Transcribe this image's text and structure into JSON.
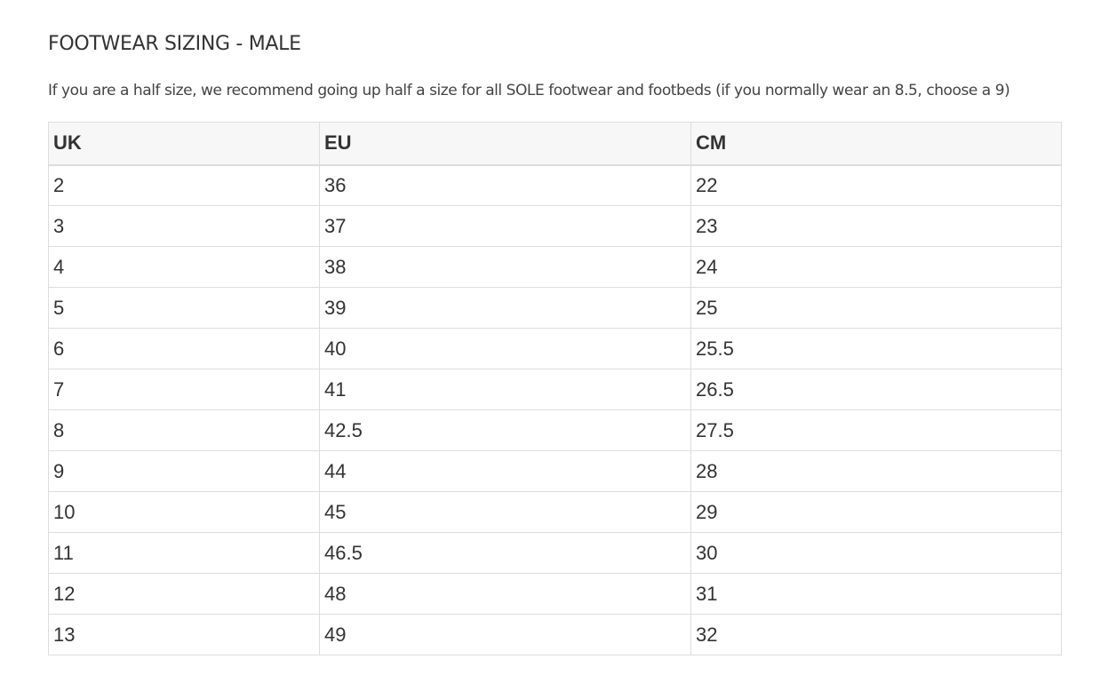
{
  "page": {
    "title": "FOOTWEAR SIZING - MALE",
    "note": "If you are a half size, we recommend going up half a size for all SOLE footwear and footbeds (if you normally wear an 8.5, choose a 9)"
  },
  "table": {
    "headers": [
      "UK",
      "EU",
      "CM"
    ],
    "rows": [
      [
        "2",
        "36",
        "22"
      ],
      [
        "3",
        "37",
        "23"
      ],
      [
        "4",
        "38",
        "24"
      ],
      [
        "5",
        "39",
        "25"
      ],
      [
        "6",
        "40",
        "25.5"
      ],
      [
        "7",
        "41",
        "26.5"
      ],
      [
        "8",
        "42.5",
        "27.5"
      ],
      [
        "9",
        "44",
        "28"
      ],
      [
        "10",
        "45",
        "29"
      ],
      [
        "11",
        "46.5",
        "30"
      ],
      [
        "12",
        "48",
        "31"
      ],
      [
        "13",
        "49",
        "32"
      ]
    ]
  }
}
